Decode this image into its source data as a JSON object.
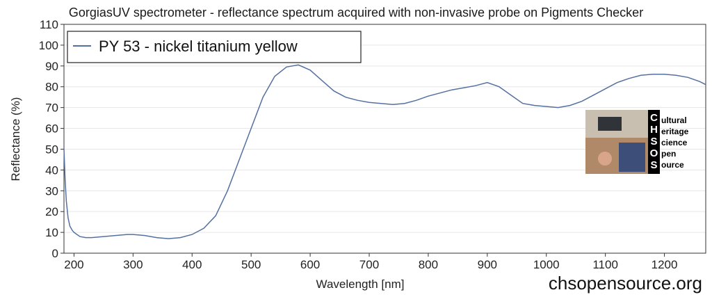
{
  "chart_data": {
    "type": "line",
    "title": "GorgiasUV spectrometer - reflectance spectrum acquired with non-invasive probe on Pigments Checker",
    "xlabel": "Wavelength [nm]",
    "ylabel": "Reflectance (%)",
    "xlim": [
      183,
      1270
    ],
    "ylim": [
      0,
      110
    ],
    "x_ticks": [
      200,
      300,
      400,
      500,
      600,
      700,
      800,
      900,
      1000,
      1100,
      1200
    ],
    "y_ticks": [
      0,
      10,
      20,
      30,
      40,
      50,
      60,
      70,
      80,
      90,
      100,
      110
    ],
    "grid": "horizontal",
    "legend_position": "top-left",
    "series": [
      {
        "name": "PY 53 - nickel titanium yellow",
        "color": "#5470a0",
        "x": [
          183,
          185,
          187,
          190,
          193,
          197,
          200,
          205,
          210,
          220,
          230,
          250,
          270,
          290,
          300,
          320,
          340,
          360,
          380,
          400,
          420,
          440,
          460,
          480,
          500,
          520,
          540,
          560,
          580,
          600,
          620,
          640,
          660,
          680,
          700,
          720,
          740,
          760,
          780,
          800,
          820,
          840,
          860,
          880,
          900,
          920,
          940,
          960,
          980,
          1000,
          1020,
          1040,
          1060,
          1080,
          1100,
          1120,
          1140,
          1160,
          1180,
          1200,
          1220,
          1240,
          1260,
          1270
        ],
        "y": [
          50,
          35,
          25,
          17,
          13,
          11,
          10,
          9,
          8,
          7.5,
          7.5,
          8,
          8.5,
          9,
          9,
          8.5,
          7.5,
          7,
          7.5,
          9,
          12,
          18,
          30,
          45,
          60,
          75,
          85,
          89.5,
          90.5,
          88,
          83,
          78,
          75,
          73.5,
          72.5,
          72,
          71.5,
          72,
          73.5,
          75.5,
          77,
          78.5,
          79.5,
          80.5,
          82,
          80,
          76,
          72,
          71,
          70.5,
          70,
          71,
          73,
          76,
          79,
          82,
          84,
          85.5,
          86,
          86,
          85.5,
          84.5,
          82.5,
          81
        ]
      }
    ],
    "annotations": [
      {
        "text": "chsopensource.org"
      }
    ]
  },
  "logo": {
    "letters": [
      "C",
      "H",
      "S",
      "O",
      "S"
    ],
    "words": [
      "ultural",
      "eritage",
      "cience",
      "pen",
      "ource"
    ]
  }
}
